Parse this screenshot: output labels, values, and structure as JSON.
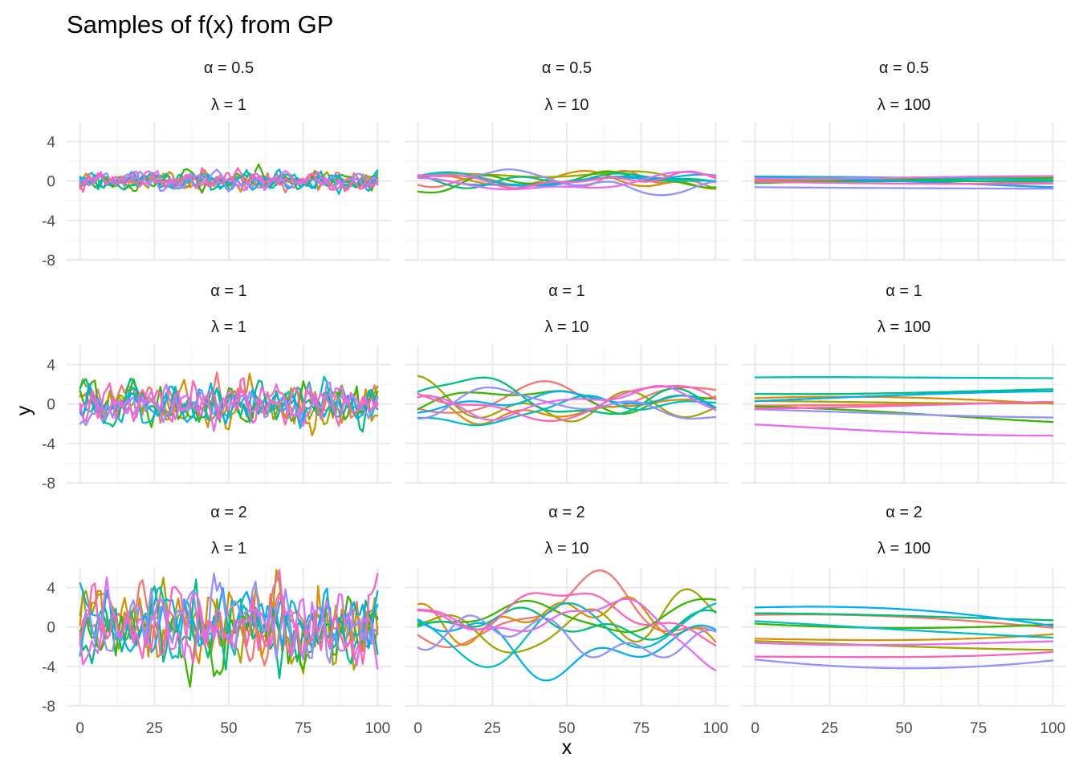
{
  "chart_data": {
    "type": "line",
    "title": "Samples of f(x) from GP",
    "xlabel": "x",
    "ylabel": "y",
    "xlim": [
      0,
      100
    ],
    "ylim": [
      -8,
      6
    ],
    "x_ticks": [
      0,
      25,
      50,
      75,
      100
    ],
    "y_ticks": [
      4,
      0,
      -4,
      -8
    ],
    "y_tick_labels": [
      "4",
      "0",
      "-4",
      "-8"
    ],
    "grid": true,
    "facet_rows": [
      {
        "label": "α = 0.5",
        "amplitude": 0.5
      },
      {
        "label": "α = 1",
        "amplitude": 1
      },
      {
        "label": "α = 2",
        "amplitude": 2
      }
    ],
    "facet_cols": [
      {
        "label": "λ = 1",
        "lengthscale": 1
      },
      {
        "label": "λ = 10",
        "lengthscale": 10
      },
      {
        "label": "λ = 100",
        "lengthscale": 100
      }
    ],
    "series_per_panel": 10,
    "series_colors": [
      "#F8766D",
      "#D89000",
      "#A3A500",
      "#39B600",
      "#00BF7D",
      "#00BFC4",
      "#00B0F6",
      "#9590FF",
      "#E76BF3",
      "#FF62BC"
    ]
  }
}
